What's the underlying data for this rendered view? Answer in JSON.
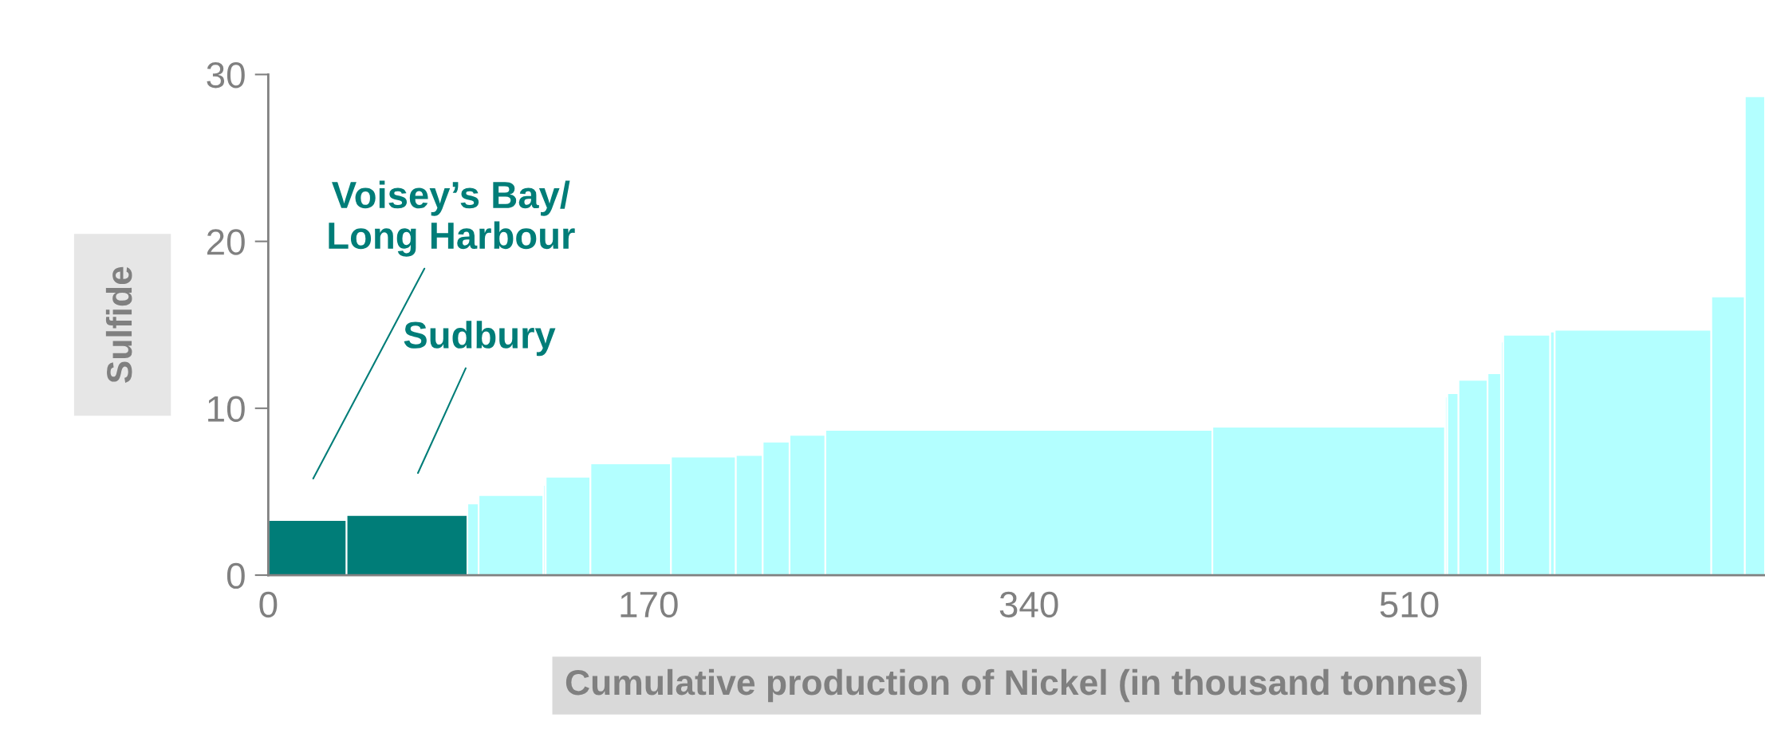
{
  "chart_data": {
    "type": "histogram",
    "xlabel": "Cumulative production of Nickel (in thousand tonnes)",
    "ylabel": "Sulfide",
    "bins": [
      0,
      35,
      89,
      94,
      123,
      124,
      144,
      180,
      209,
      221,
      233,
      249,
      422,
      526,
      527,
      532,
      545,
      551,
      552,
      573,
      575,
      645,
      660,
      669
    ],
    "values": [
      3.3,
      3.6,
      4.3,
      4.8,
      5.4,
      5.9,
      6.7,
      7.1,
      7.2,
      8.0,
      8.4,
      8.7,
      8.9,
      10.7,
      10.9,
      11.7,
      12.1,
      14.0,
      14.4,
      14.6,
      14.7,
      16.7,
      28.7
    ],
    "colors": [
      "#007d78",
      "#007d78",
      "#b3ffff",
      "#b3ffff",
      "#b3ffff",
      "#b3ffff",
      "#b3ffff",
      "#b3ffff",
      "#b3ffff",
      "#b3ffff",
      "#b3ffff",
      "#b3ffff",
      "#b3ffff",
      "#b3ffff",
      "#b3ffff",
      "#b3ffff",
      "#b3ffff",
      "#b3ffff",
      "#b3ffff",
      "#b3ffff",
      "#b3ffff",
      "#b3ffff",
      "#b3ffff"
    ],
    "xlim": [
      0,
      669
    ],
    "ylim": [
      0,
      30
    ],
    "xticks": [
      0,
      170,
      340,
      510
    ],
    "yticks": [
      0,
      10,
      20,
      30
    ],
    "grid": false,
    "annotations": [
      "Voisey’s Bay/\nLong Harbour",
      "Sudbury"
    ]
  }
}
